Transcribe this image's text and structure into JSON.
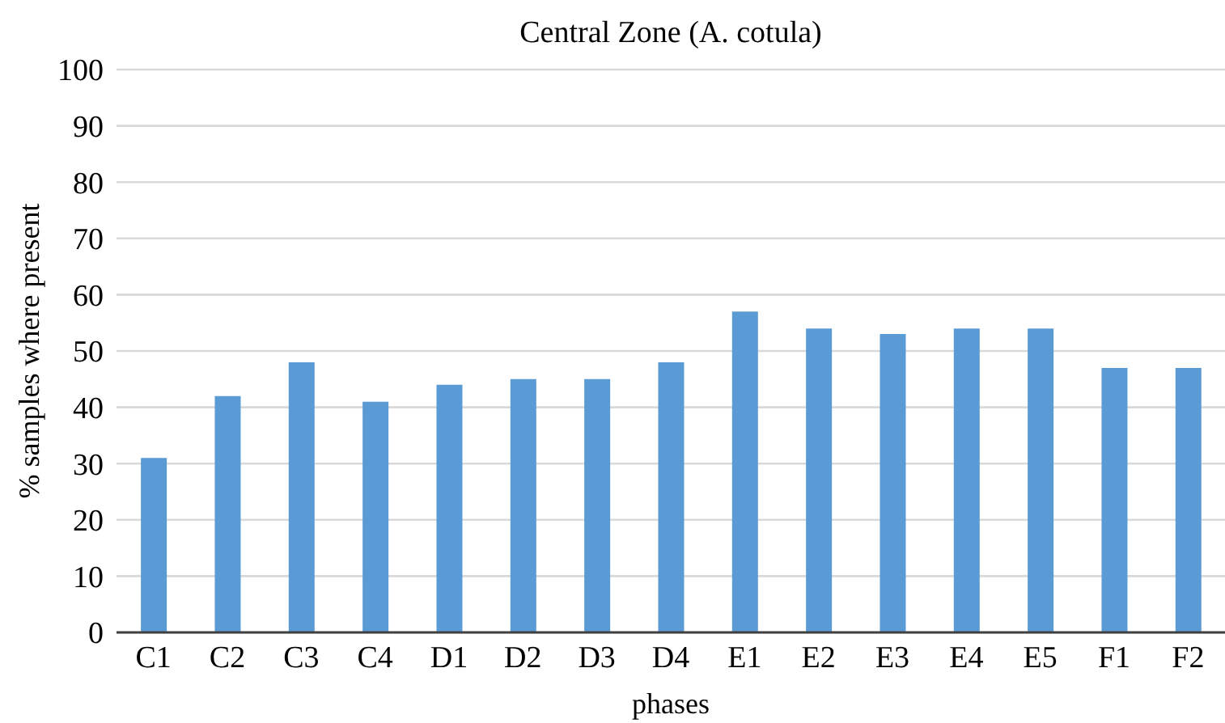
{
  "chart_data": {
    "type": "bar",
    "title": "Central Zone (A. cotula)",
    "xlabel": "phases",
    "ylabel": "% samples where present",
    "categories": [
      "C1",
      "C2",
      "C3",
      "C4",
      "D1",
      "D2",
      "D3",
      "D4",
      "E1",
      "E2",
      "E3",
      "E4",
      "E5",
      "F1",
      "F2"
    ],
    "values": [
      31,
      42,
      48,
      41,
      44,
      45,
      45,
      48,
      57,
      54,
      53,
      54,
      54,
      47,
      47
    ],
    "color": "#5b9bd5",
    "ylim": [
      0,
      100
    ],
    "yticks": [
      0,
      10,
      20,
      30,
      40,
      50,
      60,
      70,
      80,
      90,
      100
    ],
    "grid": "y"
  }
}
